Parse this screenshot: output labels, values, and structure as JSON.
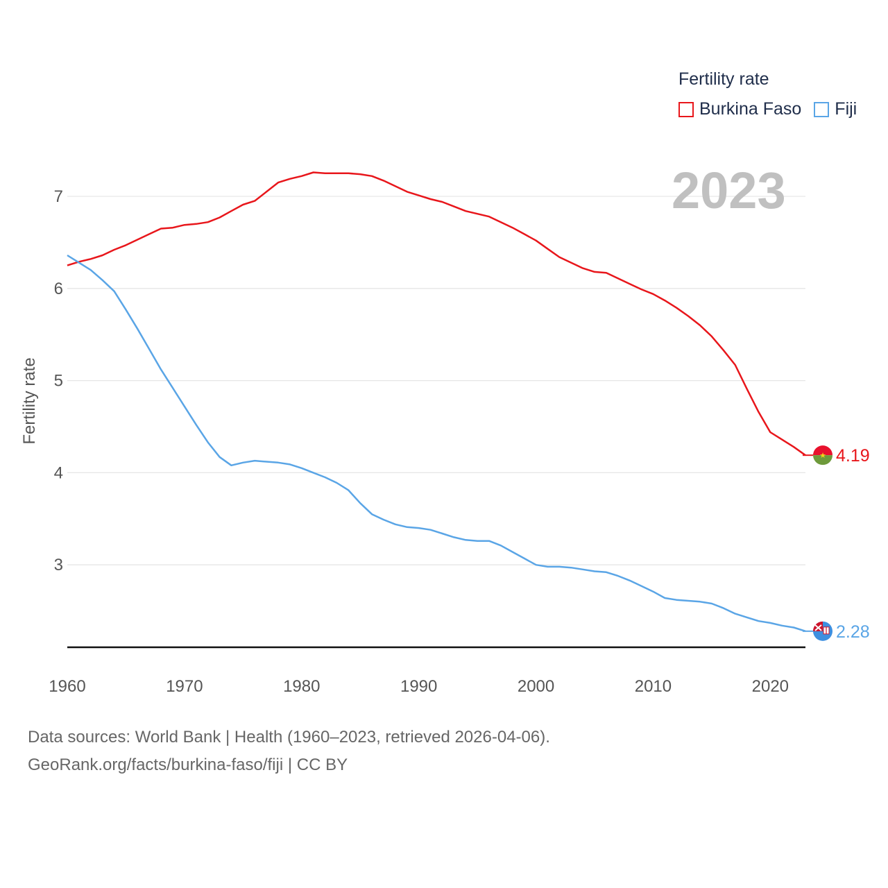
{
  "legend": {
    "title": "Fertility rate"
  },
  "year_display": "2023",
  "footer": {
    "line1": "Data sources: World Bank | Health (1960–2023, retrieved 2026-04-06).",
    "line2": "GeoRank.org/facts/burkina-faso/fiji | CC BY"
  },
  "chart_data": {
    "type": "line",
    "ylabel": "Fertility rate",
    "xlim": [
      1960,
      2023
    ],
    "ylim": [
      2.1,
      7.5
    ],
    "x_ticks": [
      1960,
      1970,
      1980,
      1990,
      2000,
      2010,
      2020
    ],
    "y_ticks": [
      3,
      4,
      5,
      6,
      7
    ],
    "grid": true,
    "legend_position": "top-right",
    "x": [
      1960,
      1961,
      1962,
      1963,
      1964,
      1965,
      1966,
      1967,
      1968,
      1969,
      1970,
      1971,
      1972,
      1973,
      1974,
      1975,
      1976,
      1977,
      1978,
      1979,
      1980,
      1981,
      1982,
      1983,
      1984,
      1985,
      1986,
      1987,
      1988,
      1989,
      1990,
      1991,
      1992,
      1993,
      1994,
      1995,
      1996,
      1997,
      1998,
      1999,
      2000,
      2001,
      2002,
      2003,
      2004,
      2005,
      2006,
      2007,
      2008,
      2009,
      2010,
      2011,
      2012,
      2013,
      2014,
      2015,
      2016,
      2017,
      2018,
      2019,
      2020,
      2021,
      2022,
      2023
    ],
    "series": [
      {
        "name": "Burkina Faso",
        "color": "#e8161b",
        "end_label": "4.19",
        "flag": "burkina-faso-flag-icon",
        "values": [
          6.25,
          6.29,
          6.32,
          6.36,
          6.42,
          6.47,
          6.53,
          6.59,
          6.65,
          6.66,
          6.69,
          6.7,
          6.72,
          6.77,
          6.84,
          6.91,
          6.95,
          7.05,
          7.15,
          7.19,
          7.22,
          7.26,
          7.25,
          7.25,
          7.25,
          7.24,
          7.22,
          7.17,
          7.11,
          7.05,
          7.01,
          6.97,
          6.94,
          6.89,
          6.84,
          6.81,
          6.78,
          6.72,
          6.66,
          6.59,
          6.52,
          6.43,
          6.34,
          6.28,
          6.22,
          6.18,
          6.17,
          6.11,
          6.05,
          5.99,
          5.94,
          5.87,
          5.79,
          5.7,
          5.6,
          5.48,
          5.33,
          5.17,
          4.91,
          4.66,
          4.44,
          4.36,
          4.28,
          4.19
        ]
      },
      {
        "name": "Fiji",
        "color": "#5aa5e6",
        "end_label": "2.28",
        "flag": "fiji-flag-icon",
        "values": [
          6.36,
          6.28,
          6.2,
          6.09,
          5.97,
          5.77,
          5.56,
          5.34,
          5.12,
          4.92,
          4.72,
          4.52,
          4.33,
          4.17,
          4.08,
          4.11,
          4.13,
          4.12,
          4.11,
          4.09,
          4.05,
          4.0,
          3.95,
          3.89,
          3.81,
          3.67,
          3.55,
          3.49,
          3.44,
          3.41,
          3.4,
          3.38,
          3.34,
          3.3,
          3.27,
          3.26,
          3.26,
          3.21,
          3.14,
          3.07,
          3.0,
          2.98,
          2.98,
          2.97,
          2.95,
          2.93,
          2.92,
          2.88,
          2.83,
          2.77,
          2.71,
          2.64,
          2.62,
          2.61,
          2.6,
          2.58,
          2.53,
          2.47,
          2.43,
          2.39,
          2.37,
          2.34,
          2.32,
          2.28
        ]
      }
    ]
  }
}
